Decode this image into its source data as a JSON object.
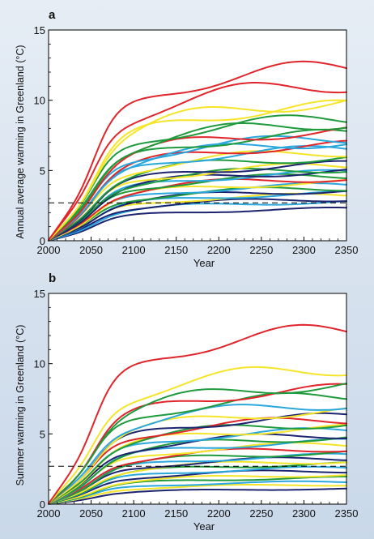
{
  "chart_data": [
    {
      "type": "line",
      "panel_label": "a",
      "ylabel": "Annual average warming in Greenland (°C)",
      "xlabel": "Year",
      "xlim": [
        2000,
        2350
      ],
      "ylim": [
        0,
        15
      ],
      "x_ticks": [
        2000,
        2050,
        2100,
        2150,
        2200,
        2250,
        2300,
        2350
      ],
      "y_ticks": [
        0,
        5,
        10,
        15
      ],
      "grid": false,
      "threshold": {
        "value": 2.7,
        "style": "dashed",
        "color": "#000000"
      },
      "series": [
        {
          "color": "#e0252b",
          "final": 12.5
        },
        {
          "color": "#e0252b",
          "final": 11.3
        },
        {
          "color": "#f5e52a",
          "final": 10.0
        },
        {
          "color": "#f5e52a",
          "final": 9.7
        },
        {
          "color": "#1f9a3c",
          "final": 8.8
        },
        {
          "color": "#1f9a3c",
          "final": 8.5
        },
        {
          "color": "#e0252b",
          "final": 7.9
        },
        {
          "color": "#1f9a3c",
          "final": 7.7
        },
        {
          "color": "#2aa7dc",
          "final": 7.4
        },
        {
          "color": "#2aa7dc",
          "final": 7.1
        },
        {
          "color": "#e0252b",
          "final": 6.9
        },
        {
          "color": "#2aa7dc",
          "final": 6.6
        },
        {
          "color": "#f5e52a",
          "final": 6.4
        },
        {
          "color": "#1f9a3c",
          "final": 6.0
        },
        {
          "color": "#1d2470",
          "final": 5.5
        },
        {
          "color": "#f5e52a",
          "final": 5.4
        },
        {
          "color": "#1f9a3c",
          "final": 5.2
        },
        {
          "color": "#1d2470",
          "final": 5.0
        },
        {
          "color": "#2aa7dc",
          "final": 4.9
        },
        {
          "color": "#1f9a3c",
          "final": 4.7
        },
        {
          "color": "#e0252b",
          "final": 4.5
        },
        {
          "color": "#f5e52a",
          "final": 4.2
        },
        {
          "color": "#2aa7dc",
          "final": 4.0
        },
        {
          "color": "#1f9a3c",
          "final": 3.8
        },
        {
          "color": "#1d2470",
          "final": 3.6
        },
        {
          "color": "#2aa7dc",
          "final": 3.4
        },
        {
          "color": "#f5e52a",
          "final": 3.3
        },
        {
          "color": "#1d2470",
          "final": 3.0
        },
        {
          "color": "#2aa7dc",
          "final": 2.8
        },
        {
          "color": "#1d2470",
          "final": 2.3
        }
      ]
    },
    {
      "type": "line",
      "panel_label": "b",
      "ylabel": "Summer warming in Greenland (°C)",
      "xlabel": "Year",
      "xlim": [
        2000,
        2350
      ],
      "ylim": [
        0,
        15
      ],
      "x_ticks": [
        2000,
        2050,
        2100,
        2150,
        2200,
        2250,
        2300,
        2350
      ],
      "y_ticks": [
        0,
        5,
        10,
        15
      ],
      "grid": false,
      "threshold": {
        "value": 2.7,
        "style": "dashed",
        "color": "#000000"
      },
      "series": [
        {
          "color": "#e0252b",
          "final": 12.5
        },
        {
          "color": "#f5e52a",
          "final": 9.8
        },
        {
          "color": "#1f9a3c",
          "final": 8.6
        },
        {
          "color": "#e0252b",
          "final": 8.3
        },
        {
          "color": "#1f9a3c",
          "final": 7.8
        },
        {
          "color": "#2aa7dc",
          "final": 7.2
        },
        {
          "color": "#f5e52a",
          "final": 6.7
        },
        {
          "color": "#1d2470",
          "final": 6.3
        },
        {
          "color": "#e0252b",
          "final": 6.1
        },
        {
          "color": "#1f9a3c",
          "final": 5.8
        },
        {
          "color": "#f5e52a",
          "final": 5.5
        },
        {
          "color": "#2aa7dc",
          "final": 5.3
        },
        {
          "color": "#1d2470",
          "final": 5.0
        },
        {
          "color": "#1f9a3c",
          "final": 4.8
        },
        {
          "color": "#2aa7dc",
          "final": 4.5
        },
        {
          "color": "#f5e52a",
          "final": 4.3
        },
        {
          "color": "#e0252b",
          "final": 4.0
        },
        {
          "color": "#1f9a3c",
          "final": 3.7
        },
        {
          "color": "#2aa7dc",
          "final": 3.5
        },
        {
          "color": "#1d2470",
          "final": 3.3
        },
        {
          "color": "#f5e52a",
          "final": 3.1
        },
        {
          "color": "#1f9a3c",
          "final": 2.9
        },
        {
          "color": "#2aa7dc",
          "final": 2.6
        },
        {
          "color": "#1d2470",
          "final": 2.4
        },
        {
          "color": "#f5e52a",
          "final": 2.1
        },
        {
          "color": "#1f9a3c",
          "final": 1.9
        },
        {
          "color": "#2aa7dc",
          "final": 1.6
        },
        {
          "color": "#f5e52a",
          "final": 1.4
        },
        {
          "color": "#1d2470",
          "final": 1.1
        }
      ]
    }
  ]
}
